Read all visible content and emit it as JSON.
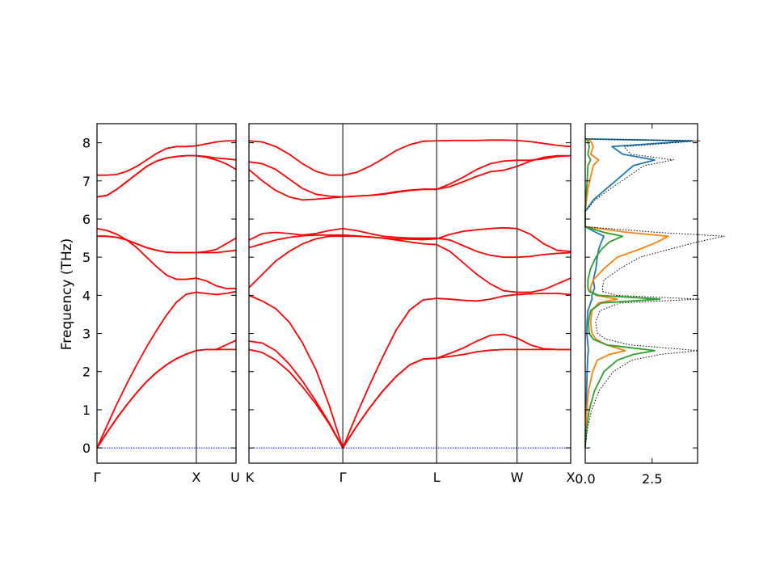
{
  "chart_data": [
    {
      "type": "line",
      "panel": "band-structure-left",
      "ylabel": "Frequency (THz)",
      "ylim": [
        -0.4,
        8.5
      ],
      "yticks": [
        "0",
        "1",
        "2",
        "3",
        "4",
        "5",
        "6",
        "7",
        "8"
      ],
      "x_ticks": [
        "Γ",
        "X",
        "U"
      ],
      "x": [
        0.0,
        0.1,
        0.2,
        0.3,
        0.4,
        0.5,
        0.6,
        0.7,
        0.8,
        0.9,
        1.0,
        1.1,
        1.2,
        1.3,
        1.4
      ],
      "line_color": "#ff0000",
      "zero_line_color": "#0000ff",
      "series": [
        {
          "values": [
            0.0,
            0.4,
            0.78,
            1.13,
            1.45,
            1.74,
            1.98,
            2.18,
            2.34,
            2.46,
            2.55,
            2.58,
            2.58,
            2.7,
            2.82
          ]
        },
        {
          "values": [
            0.0,
            0.4,
            0.78,
            1.13,
            1.45,
            1.74,
            1.98,
            2.18,
            2.34,
            2.46,
            2.55,
            2.58,
            2.58,
            2.58,
            2.58
          ]
        },
        {
          "values": [
            0.0,
            0.58,
            1.15,
            1.68,
            2.18,
            2.65,
            3.08,
            3.48,
            3.82,
            4.03,
            4.08,
            4.05,
            4.02,
            4.05,
            4.1
          ]
        },
        {
          "values": [
            5.55,
            5.55,
            5.52,
            5.45,
            5.35,
            5.25,
            5.18,
            5.13,
            5.12,
            5.12,
            5.12,
            5.15,
            5.2,
            5.35,
            5.5
          ]
        },
        {
          "values": [
            5.55,
            5.55,
            5.52,
            5.45,
            5.35,
            5.25,
            5.18,
            5.13,
            5.12,
            5.12,
            5.12,
            5.12,
            5.12,
            5.15,
            5.18
          ]
        },
        {
          "values": [
            5.75,
            5.7,
            5.6,
            5.45,
            5.25,
            5.0,
            4.75,
            4.53,
            4.42,
            4.42,
            4.45,
            4.38,
            4.25,
            4.18,
            4.18
          ]
        },
        {
          "values": [
            6.58,
            6.62,
            6.78,
            6.98,
            7.18,
            7.38,
            7.52,
            7.6,
            7.64,
            7.66,
            7.66,
            7.64,
            7.6,
            7.58,
            7.55
          ]
        },
        {
          "values": [
            6.58,
            6.62,
            6.78,
            6.98,
            7.18,
            7.38,
            7.52,
            7.6,
            7.64,
            7.66,
            7.66,
            7.62,
            7.55,
            7.45,
            7.3
          ]
        },
        {
          "values": [
            7.15,
            7.15,
            7.17,
            7.25,
            7.38,
            7.55,
            7.72,
            7.85,
            7.9,
            7.9,
            7.92,
            7.97,
            8.02,
            8.05,
            8.05
          ]
        }
      ]
    },
    {
      "type": "line",
      "panel": "band-structure-right",
      "ylim": [
        -0.4,
        8.5
      ],
      "x_ticks": [
        "K",
        "Γ",
        "L",
        "W",
        "X"
      ],
      "x": [
        0,
        0.5,
        1,
        1.5,
        2,
        2.5,
        3,
        3.5,
        4,
        4.5,
        5,
        5.5,
        6,
        6.5,
        7,
        7.5,
        8,
        8.5,
        9,
        9.5,
        10,
        10.5,
        11,
        11.5,
        12
      ],
      "line_color": "#ff0000",
      "zero_line_color": "#0000ff",
      "series": [
        {
          "values": [
            2.58,
            2.5,
            2.3,
            2.0,
            1.6,
            1.15,
            0.62,
            0.0,
            0.55,
            1.05,
            1.5,
            1.88,
            2.18,
            2.33,
            2.35,
            2.4,
            2.45,
            2.52,
            2.56,
            2.58,
            2.58,
            2.58,
            2.58,
            2.58,
            2.58
          ]
        },
        {
          "values": [
            2.8,
            2.75,
            2.55,
            2.2,
            1.75,
            1.22,
            0.65,
            0.0,
            0.55,
            1.05,
            1.5,
            1.88,
            2.18,
            2.33,
            2.35,
            2.48,
            2.62,
            2.8,
            2.95,
            2.98,
            2.88,
            2.7,
            2.6,
            2.58,
            2.58
          ]
        },
        {
          "values": [
            4.0,
            3.85,
            3.65,
            3.3,
            2.75,
            2.05,
            1.1,
            0.0,
            0.85,
            1.65,
            2.4,
            3.1,
            3.62,
            3.88,
            3.92,
            3.9,
            3.87,
            3.85,
            3.9,
            3.98,
            4.02,
            4.04,
            4.05,
            4.05,
            4.02
          ]
        },
        {
          "values": [
            4.2,
            4.55,
            4.9,
            5.15,
            5.35,
            5.48,
            5.55,
            5.55,
            5.55,
            5.53,
            5.5,
            5.45,
            5.4,
            5.35,
            5.33,
            5.15,
            4.85,
            4.55,
            4.3,
            4.12,
            4.08,
            4.08,
            4.15,
            4.3,
            4.45
          ]
        },
        {
          "values": [
            5.25,
            5.35,
            5.45,
            5.52,
            5.56,
            5.58,
            5.58,
            5.58,
            5.56,
            5.53,
            5.5,
            5.48,
            5.47,
            5.46,
            5.48,
            5.6,
            5.68,
            5.72,
            5.75,
            5.77,
            5.75,
            5.6,
            5.35,
            5.18,
            5.15
          ]
        },
        {
          "values": [
            5.45,
            5.62,
            5.65,
            5.62,
            5.58,
            5.62,
            5.7,
            5.75,
            5.7,
            5.62,
            5.55,
            5.52,
            5.5,
            5.5,
            5.5,
            5.45,
            5.3,
            5.15,
            5.05,
            5.0,
            5.0,
            5.02,
            5.07,
            5.1,
            5.12
          ]
        },
        {
          "values": [
            7.3,
            7.0,
            6.75,
            6.58,
            6.5,
            6.52,
            6.55,
            6.58,
            6.6,
            6.62,
            6.65,
            6.7,
            6.75,
            6.78,
            6.78,
            6.92,
            7.1,
            7.3,
            7.45,
            7.52,
            7.54,
            7.54,
            7.58,
            7.64,
            7.66
          ]
        },
        {
          "values": [
            7.5,
            7.45,
            7.3,
            7.05,
            6.8,
            6.65,
            6.6,
            6.58,
            6.6,
            6.62,
            6.66,
            6.72,
            6.76,
            6.78,
            6.78,
            6.85,
            6.98,
            7.12,
            7.24,
            7.28,
            7.38,
            7.52,
            7.62,
            7.66,
            7.66
          ]
        },
        {
          "values": [
            8.05,
            8.02,
            7.9,
            7.7,
            7.45,
            7.25,
            7.15,
            7.15,
            7.22,
            7.38,
            7.58,
            7.8,
            7.95,
            8.04,
            8.05,
            8.06,
            8.06,
            8.06,
            8.07,
            8.07,
            8.06,
            8.03,
            7.98,
            7.93,
            7.9
          ]
        }
      ]
    },
    {
      "type": "line",
      "panel": "dos",
      "ylim": [
        -0.4,
        8.5
      ],
      "xlim": [
        0,
        4.2
      ],
      "xticks": [
        "0.0",
        "2.5"
      ],
      "y": [
        0.0,
        0.5,
        1.0,
        1.5,
        2.0,
        2.3,
        2.45,
        2.55,
        2.7,
        2.85,
        3.0,
        3.3,
        3.6,
        3.8,
        3.9,
        4.0,
        4.1,
        4.2,
        4.4,
        4.7,
        5.0,
        5.2,
        5.4,
        5.55,
        5.65,
        5.8,
        6.2,
        6.5,
        6.8,
        7.1,
        7.4,
        7.55,
        7.7,
        7.9,
        8.05,
        8.1
      ],
      "series": [
        {
          "color": "#1f77b4",
          "values": [
            0.0,
            0.01,
            0.03,
            0.05,
            0.07,
            0.09,
            0.1,
            0.12,
            0.1,
            0.08,
            0.06,
            0.07,
            0.1,
            0.2,
            0.25,
            0.25,
            0.3,
            0.35,
            0.3,
            0.4,
            0.45,
            0.5,
            0.6,
            0.7,
            0.4,
            0.0,
            0.0,
            0.3,
            0.8,
            1.3,
            1.8,
            2.6,
            1.4,
            1.0,
            4.0,
            0.0
          ]
        },
        {
          "color": "#ff7f0e",
          "values": [
            0.0,
            0.02,
            0.06,
            0.12,
            0.28,
            0.45,
            0.9,
            1.5,
            0.8,
            0.4,
            0.25,
            0.2,
            0.25,
            0.5,
            1.2,
            0.4,
            0.2,
            0.2,
            0.3,
            0.7,
            1.2,
            2.0,
            2.7,
            3.1,
            1.6,
            0.0,
            0.0,
            0.05,
            0.1,
            0.2,
            0.3,
            0.5,
            0.2,
            0.3,
            0.2,
            0.0
          ]
        },
        {
          "color": "#2ca02c",
          "values": [
            0.0,
            0.05,
            0.15,
            0.35,
            0.7,
            1.2,
            1.8,
            2.6,
            0.8,
            0.3,
            0.15,
            0.12,
            0.2,
            0.6,
            2.8,
            0.5,
            0.15,
            0.1,
            0.1,
            0.2,
            0.4,
            0.6,
            0.9,
            1.4,
            0.7,
            0.0,
            0.0,
            0.02,
            0.05,
            0.08,
            0.1,
            0.2,
            0.1,
            0.15,
            0.1,
            0.0
          ]
        },
        {
          "color": "#000000",
          "dashed": true,
          "values": [
            0.0,
            0.08,
            0.24,
            0.52,
            1.05,
            1.74,
            2.8,
            4.22,
            1.7,
            0.78,
            0.46,
            0.39,
            0.55,
            1.3,
            4.25,
            1.15,
            0.65,
            0.65,
            0.7,
            1.3,
            2.05,
            3.1,
            4.2,
            5.2,
            2.7,
            0.0,
            0.0,
            0.37,
            0.95,
            1.58,
            2.2,
            3.3,
            1.7,
            1.45,
            4.3,
            0.0
          ]
        }
      ]
    }
  ]
}
